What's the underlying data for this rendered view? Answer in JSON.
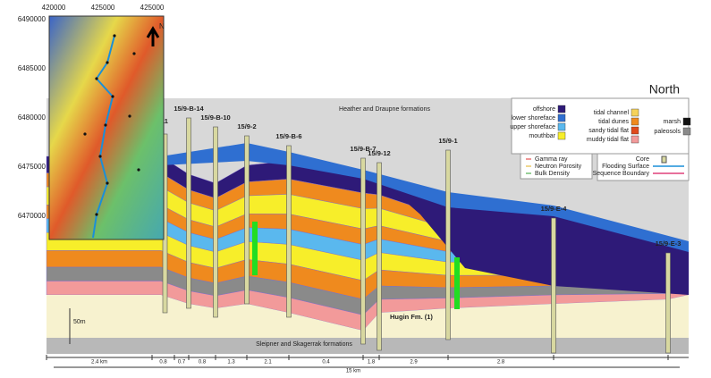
{
  "map": {
    "x_labels": [
      "420000",
      "425000",
      "425000"
    ],
    "y_labels": [
      "6490000",
      "6485000",
      "6480000",
      "6475000",
      "6470000"
    ],
    "north": "N"
  },
  "section": {
    "title": "North",
    "top_label": "Heather and Draupne formations",
    "bottom_label": "Sleipner and Skagerrak formations",
    "hugin_label": "Hugin Fm. (1)",
    "scale_label": "50m",
    "partial_well": "11",
    "wells": [
      "15/9-B-14",
      "15/9-B-10",
      "15/9-2",
      "15/9-B-6",
      "15/9-B-7",
      "15/9-12",
      "15/9-1",
      "15/9-E-4",
      "15/9-E-3"
    ],
    "distances": [
      "2.4 km",
      "0.8",
      "0.7",
      "0.8",
      "1.3",
      "2.1",
      "0.4",
      "1.8",
      "2.9",
      "2.8"
    ],
    "total_distance": "15 km"
  },
  "legend": {
    "facies": [
      {
        "name": "offshore",
        "color": "#2e1a78"
      },
      {
        "name": "lower shoreface",
        "color": "#2f6fd1"
      },
      {
        "name": "upper shoreface",
        "color": "#5ab8ee"
      },
      {
        "name": "mouthbar",
        "color": "#f7ee2a"
      },
      {
        "name": "tidal channel",
        "color": "#f5d25a"
      },
      {
        "name": "tidal dunes",
        "color": "#ef8a1e"
      },
      {
        "name": "sandy tidal flat",
        "color": "#e04a1c"
      },
      {
        "name": "muddy tidal flat",
        "color": "#f29a9a"
      },
      {
        "name": "marsh",
        "color": "#111111"
      },
      {
        "name": "paleosols",
        "color": "#8a8a8a"
      }
    ],
    "logs": [
      "Gamma ray",
      "Neutron Porosity",
      "Bulk Density"
    ],
    "symbols": [
      "Core",
      "Flooding Surface",
      "Sequence Boundary"
    ]
  }
}
